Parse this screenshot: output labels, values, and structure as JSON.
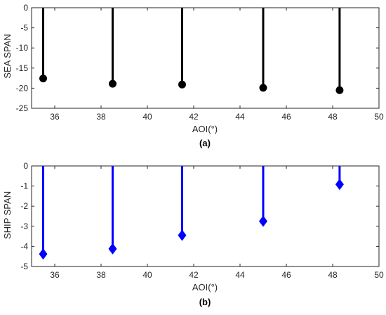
{
  "chart_data": [
    {
      "type": "stem",
      "panel_label": "(a)",
      "xlabel": "AOI(°)",
      "ylabel": "SEA SPAN",
      "xlim": [
        35,
        50
      ],
      "ylim": [
        -25,
        0
      ],
      "xticks": [
        36,
        38,
        40,
        42,
        44,
        46,
        48,
        50
      ],
      "yticks": [
        0,
        -5,
        -10,
        -15,
        -20,
        -25
      ],
      "marker": "circle",
      "color": "#000000",
      "grid": false,
      "x": [
        35.5,
        38.5,
        41.5,
        45.0,
        48.3
      ],
      "values": [
        -17.6,
        -18.9,
        -19.1,
        -19.9,
        -20.5
      ]
    },
    {
      "type": "stem",
      "panel_label": "(b)",
      "xlabel": "AOI(°)",
      "ylabel": "SHIP SPAN",
      "xlim": [
        35,
        50
      ],
      "ylim": [
        -5,
        0
      ],
      "xticks": [
        36,
        38,
        40,
        42,
        44,
        46,
        48,
        50
      ],
      "yticks": [
        0,
        -1,
        -2,
        -3,
        -4,
        -5
      ],
      "marker": "diamond",
      "color": "#0000ff",
      "grid": false,
      "x": [
        35.5,
        38.5,
        41.5,
        45.0,
        48.3
      ],
      "values": [
        -4.38,
        -4.12,
        -3.45,
        -2.75,
        -0.92
      ]
    }
  ]
}
